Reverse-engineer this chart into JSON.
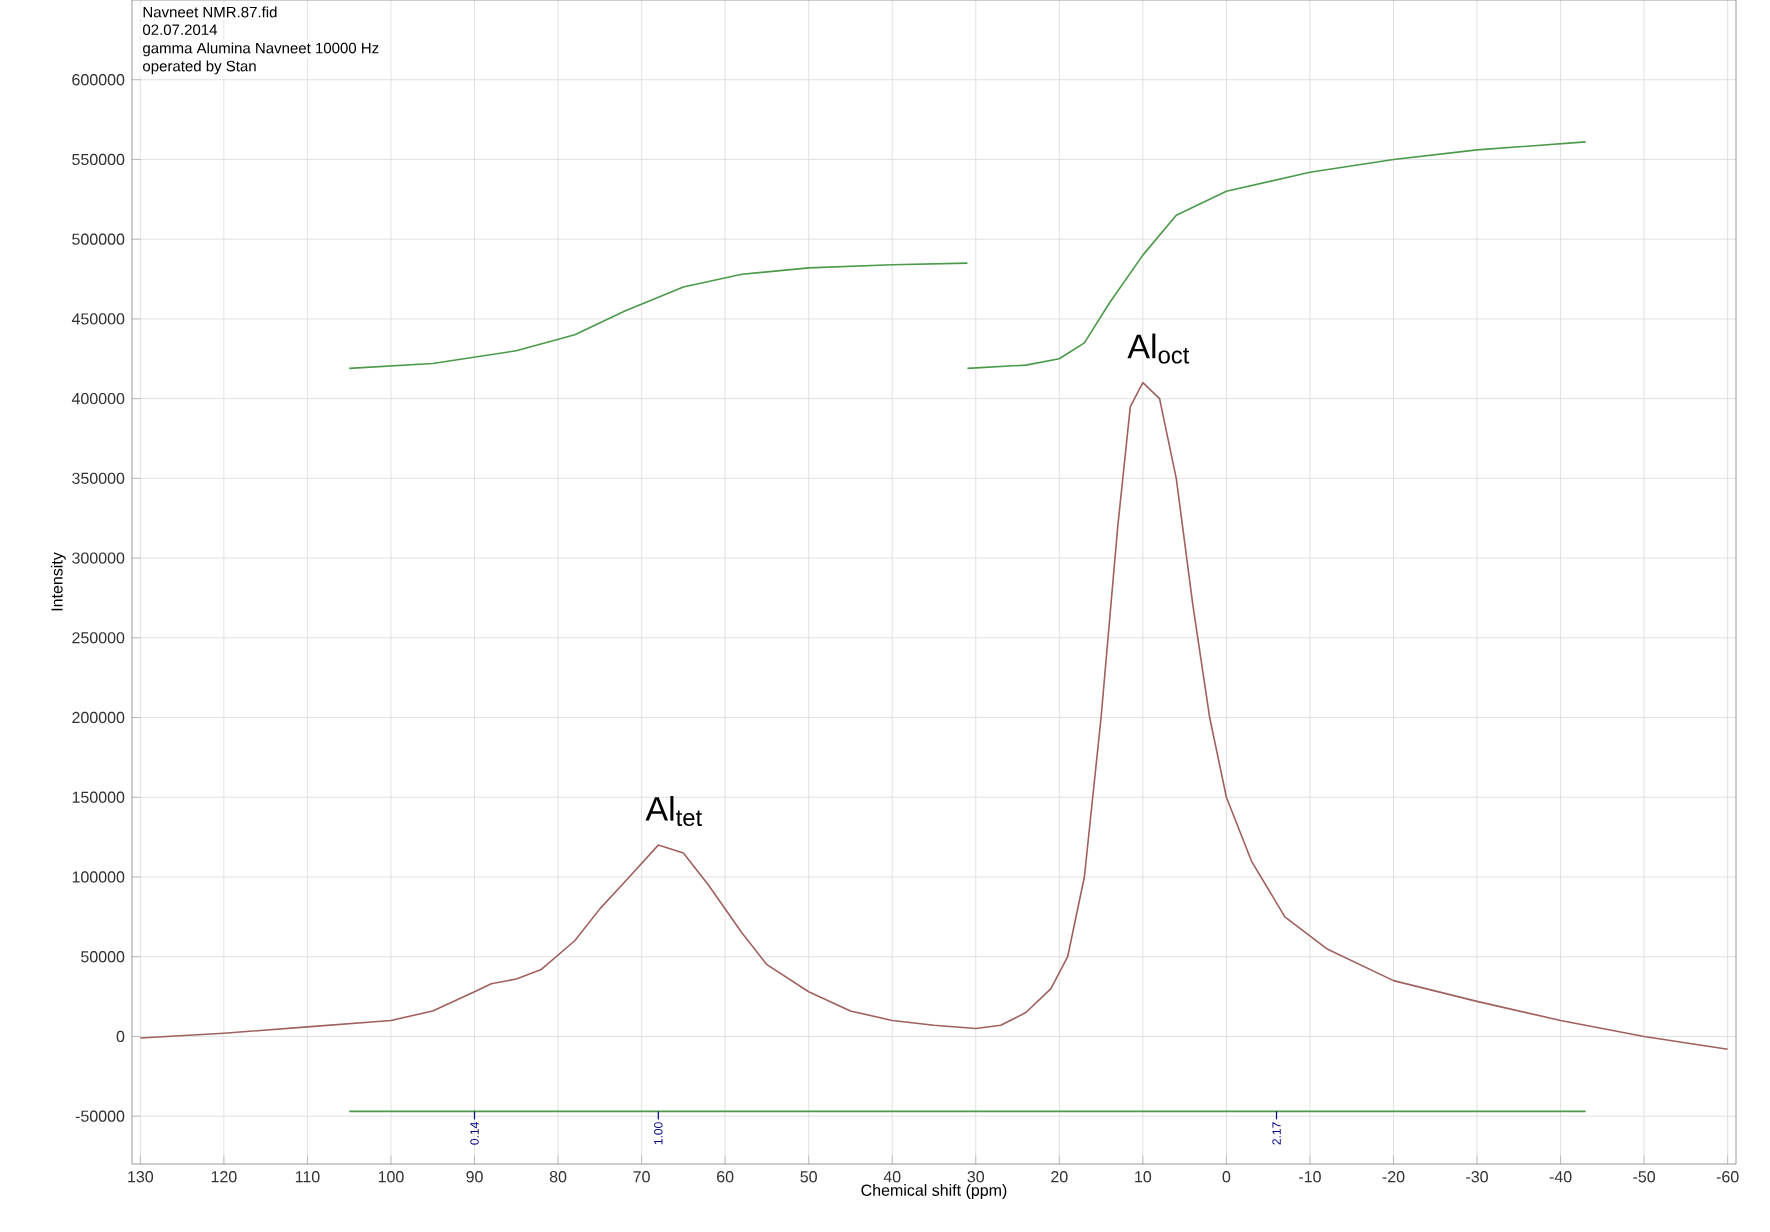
{
  "chart_data": {
    "type": "line",
    "xlabel": "Chemical shift (ppm)",
    "ylabel": "Intensity",
    "xlim": [
      131,
      -61
    ],
    "ylim": [
      -80000,
      650000
    ],
    "xticks": [
      130,
      120,
      110,
      100,
      90,
      80,
      70,
      60,
      50,
      40,
      30,
      20,
      10,
      0,
      -10,
      -20,
      -30,
      -40,
      -50,
      -60
    ],
    "yticks": [
      -50000,
      0,
      50000,
      100000,
      150000,
      200000,
      250000,
      300000,
      350000,
      400000,
      450000,
      500000,
      550000,
      600000
    ],
    "grid": true,
    "marker": "none",
    "line_style": "solid",
    "series": [
      {
        "color": "#a0605e",
        "x": [
          130,
          120,
          110,
          100,
          95,
          90,
          88,
          85,
          82,
          78,
          75,
          72,
          68,
          65,
          62,
          58,
          55,
          50,
          45,
          40,
          35,
          30,
          27,
          24,
          21,
          19,
          17,
          15,
          13,
          11.5,
          10,
          8,
          6,
          4,
          2,
          0,
          -3,
          -7,
          -12,
          -20,
          -30,
          -40,
          -50,
          -60
        ],
        "values": [
          -1000,
          2000,
          6000,
          10000,
          16000,
          28000,
          33000,
          36000,
          42000,
          60000,
          80000,
          97000,
          120000,
          115000,
          95000,
          65000,
          45000,
          28000,
          16000,
          10000,
          7000,
          5000,
          7000,
          15000,
          30000,
          50000,
          100000,
          200000,
          320000,
          395000,
          410000,
          400000,
          350000,
          270000,
          200000,
          150000,
          110000,
          75000,
          55000,
          35000,
          22000,
          10000,
          0,
          -8000
        ]
      },
      {
        "color": "#4a9a4a",
        "x": [
          105,
          95,
          85,
          78,
          72,
          65,
          58,
          50,
          40,
          31
        ],
        "values": [
          419000,
          422000,
          430000,
          440000,
          455000,
          470000,
          478000,
          482000,
          484000,
          485000
        ]
      },
      {
        "color": "#4a9a4a",
        "x": [
          31,
          24,
          20,
          17,
          14,
          10,
          6,
          0,
          -10,
          -20,
          -30,
          -43
        ],
        "values": [
          419000,
          421000,
          425000,
          435000,
          460000,
          490000,
          515000,
          530000,
          542000,
          550000,
          556000,
          561000
        ]
      },
      {
        "color": "#4a9a4a",
        "x": [
          105,
          81,
          31,
          -43
        ],
        "values": [
          -47000,
          -47000,
          -47000,
          -47000
        ]
      }
    ],
    "annotations": [
      "Navneet NMR.87.fid",
      "02.07.2014",
      "gamma Alumina Navneet 10000 Hz",
      "operated by Stan",
      {
        "text": "Al$_{tet}$",
        "x": 68,
        "y": 120000
      },
      {
        "text": "Al$_{oct}$",
        "x": 10,
        "y": 410000
      },
      {
        "text": "0.14",
        "x": 90,
        "y": -47000
      },
      {
        "text": "1.00",
        "x": 68,
        "y": -47000
      },
      {
        "text": "2.17",
        "x": -6,
        "y": -47000
      }
    ]
  }
}
